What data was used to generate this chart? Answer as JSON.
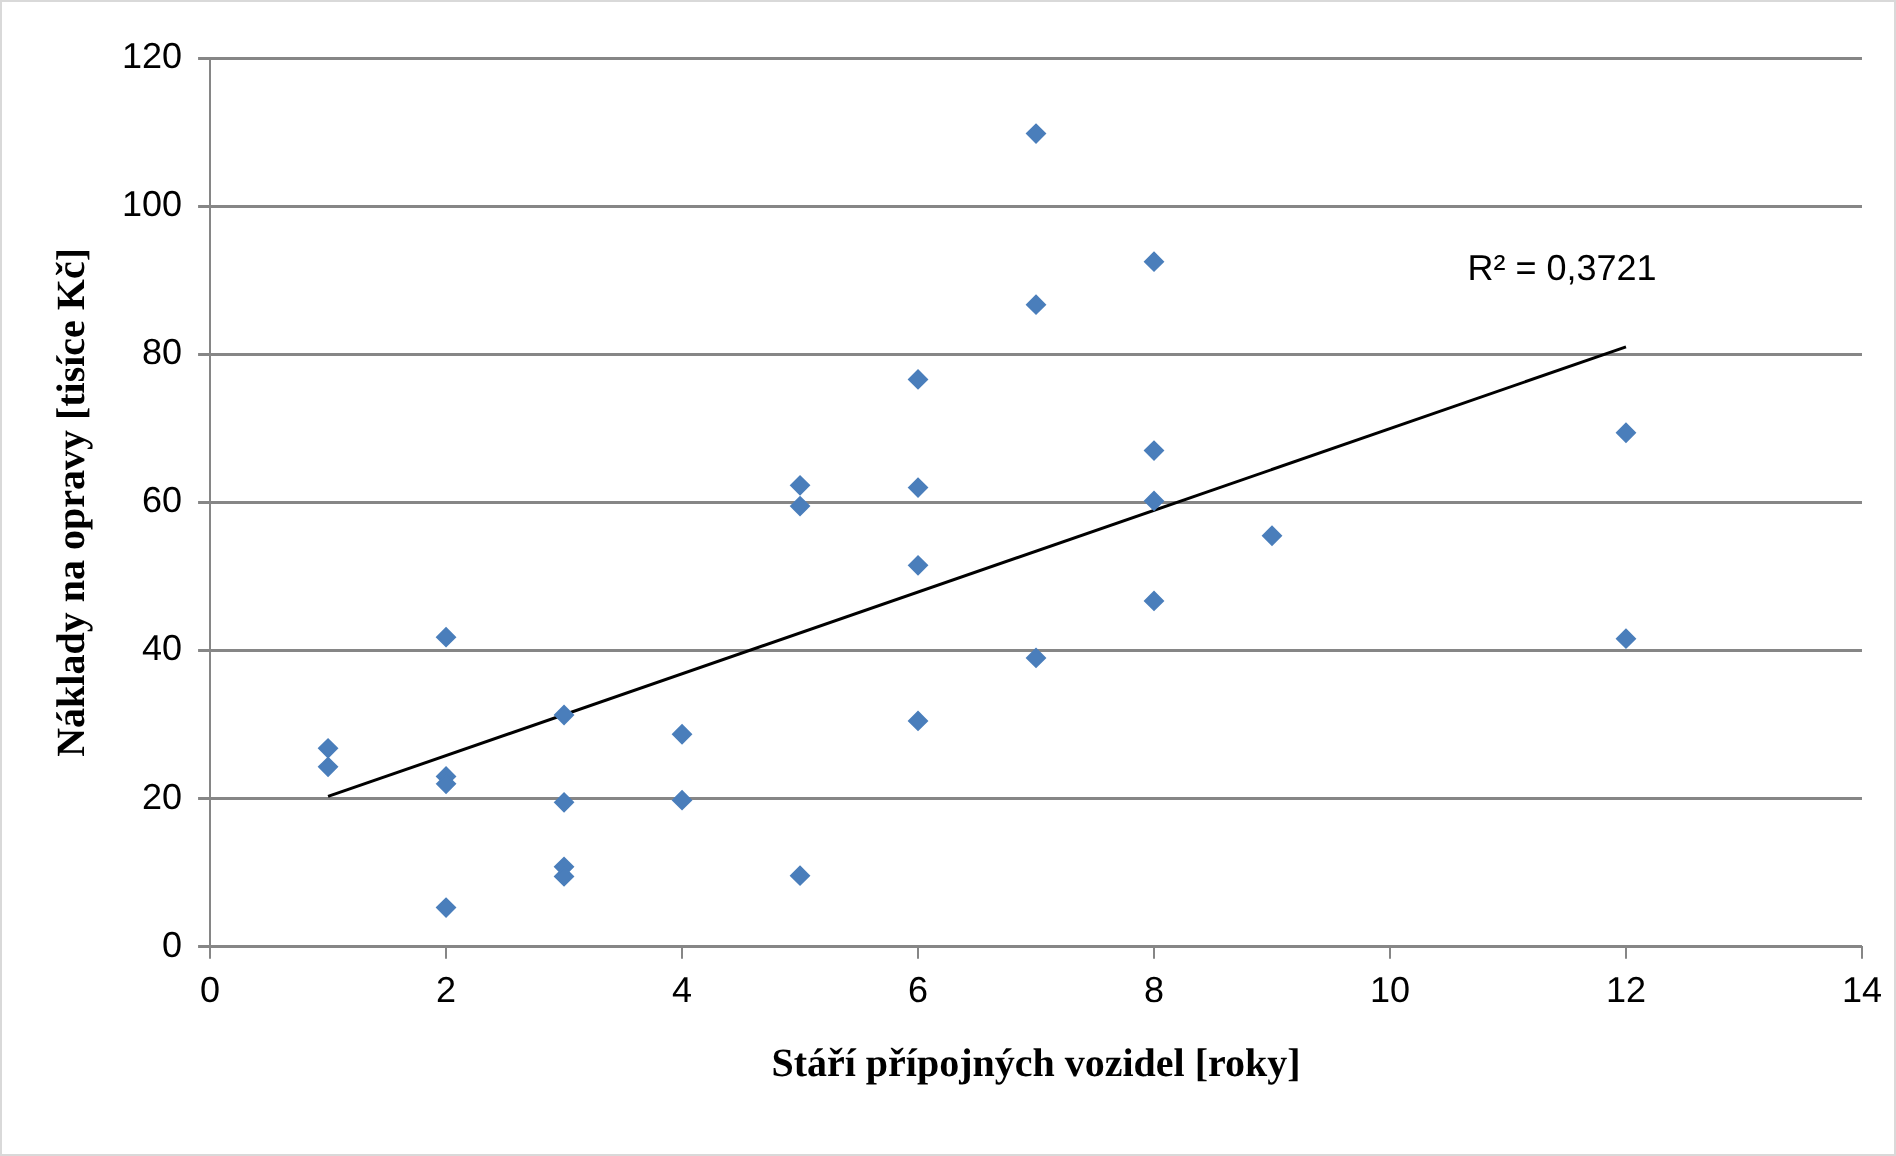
{
  "chart_data": {
    "type": "scatter",
    "xlabel": "Stáří přípojných vozidel [roky]",
    "ylabel": "Náklady na opravy [tisíce Kč]",
    "xlim": [
      0,
      14
    ],
    "xticks": [
      0,
      2,
      4,
      6,
      8,
      10,
      12,
      14
    ],
    "ylim": [
      0,
      120
    ],
    "yticks": [
      0,
      20,
      40,
      60,
      80,
      100,
      120
    ],
    "grid": "y",
    "legend": false,
    "series": [
      {
        "marker": "diamond",
        "color": "#4a7ebb",
        "x": [
          1,
          1,
          2,
          2,
          2,
          2,
          3,
          3,
          3,
          3,
          4,
          4,
          5,
          5,
          5,
          6,
          6,
          6,
          6,
          7,
          7,
          7,
          8,
          8,
          8,
          8,
          9,
          12,
          12
        ],
        "values": [
          26.8,
          24.3,
          41.8,
          23,
          22,
          5.3,
          31.3,
          19.5,
          10.8,
          9.5,
          28.7,
          19.8,
          62.3,
          59.5,
          9.6,
          76.6,
          62,
          51.5,
          30.5,
          109.8,
          86.7,
          39,
          92.5,
          67,
          60.2,
          46.7,
          55.5,
          69.4,
          41.6
        ]
      },
      {
        "type": "line",
        "color": "#000000",
        "x": [
          1,
          12
        ],
        "values": [
          20.3,
          81
        ]
      }
    ],
    "annotations": [
      "R² = 0,3721"
    ]
  }
}
